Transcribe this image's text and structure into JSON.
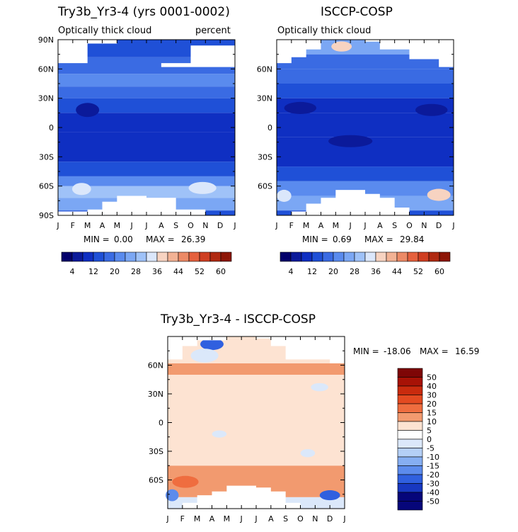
{
  "chart_data": [
    {
      "type": "heatmap",
      "id": "model",
      "title": "Try3b_Yr3-4 (yrs 0001-0002)",
      "subtitle_left": "Optically thick cloud",
      "subtitle_right": "percent",
      "x_ticks": [
        "J",
        "F",
        "M",
        "A",
        "M",
        "J",
        "J",
        "A",
        "S",
        "O",
        "N",
        "D",
        "J"
      ],
      "y_ticks": [
        "90N",
        "60N",
        "30N",
        "0",
        "30S",
        "60S",
        "90S"
      ],
      "y_values": [
        90,
        60,
        30,
        0,
        -30,
        -60,
        -90
      ],
      "min_label": "MIN =",
      "min_value": "0.00",
      "max_label": "MAX =",
      "max_value": "26.39",
      "colorbar_ticks": [
        "4",
        "12",
        "20",
        "28",
        "36",
        "44",
        "52",
        "60"
      ],
      "colorbar_levels": [
        0,
        4,
        8,
        12,
        16,
        20,
        24,
        28,
        32,
        36,
        40,
        44,
        48,
        52,
        56,
        60,
        64
      ],
      "masked_north": [
        [
          0,
          66
        ],
        [
          2,
          66
        ],
        [
          2,
          86
        ],
        [
          4,
          86
        ],
        [
          4,
          90
        ],
        [
          12,
          90
        ],
        [
          12,
          84
        ],
        [
          9,
          84
        ],
        [
          9,
          66
        ],
        [
          7,
          66
        ],
        [
          7,
          62
        ],
        [
          12,
          62
        ]
      ],
      "masked_south": [
        [
          0,
          -86
        ],
        [
          2,
          -86
        ],
        [
          2,
          -84
        ],
        [
          3,
          -84
        ],
        [
          3,
          -76
        ],
        [
          4,
          -76
        ],
        [
          4,
          -70
        ],
        [
          6,
          -70
        ],
        [
          6,
          -72
        ],
        [
          8,
          -72
        ],
        [
          8,
          -84
        ],
        [
          10,
          -84
        ],
        [
          10,
          -90
        ]
      ],
      "bands": [
        {
          "lat": [
            -90,
            -85
          ],
          "level": 3
        },
        {
          "lat": [
            -85,
            -72
          ],
          "level": 6
        },
        {
          "lat": [
            -72,
            -60
          ],
          "level": 7
        },
        {
          "lat": [
            -60,
            -50
          ],
          "level": 5
        },
        {
          "lat": [
            -50,
            -35
          ],
          "level": 3
        },
        {
          "lat": [
            -35,
            -5
          ],
          "level": 2
        },
        {
          "lat": [
            -5,
            15
          ],
          "level": 2
        },
        {
          "lat": [
            15,
            30
          ],
          "level": 3
        },
        {
          "lat": [
            30,
            42
          ],
          "level": 4
        },
        {
          "lat": [
            42,
            55
          ],
          "level": 5
        },
        {
          "lat": [
            55,
            72
          ],
          "level": 4
        },
        {
          "lat": [
            72,
            90
          ],
          "level": 3
        }
      ],
      "blobs": [
        {
          "x": 2.0,
          "lat": 18,
          "w": 1.2,
          "h": 5,
          "level": 1
        },
        {
          "x": 1.6,
          "lat": -63,
          "w": 0.9,
          "h": 4,
          "level": 8
        },
        {
          "x": 9.8,
          "lat": -62,
          "w": 1.5,
          "h": 4,
          "level": 8
        }
      ]
    },
    {
      "type": "heatmap",
      "id": "obs",
      "title": "ISCCP-COSP",
      "subtitle_left": "Optically thick cloud",
      "x_ticks": [
        "J",
        "F",
        "M",
        "A",
        "M",
        "J",
        "J",
        "A",
        "S",
        "O",
        "N",
        "D",
        "J"
      ],
      "y_ticks": [
        "60N",
        "30N",
        "0",
        "30S",
        "60S"
      ],
      "y_values": [
        60,
        30,
        0,
        -30,
        -60
      ],
      "min_label": "MIN =",
      "min_value": "0.69",
      "max_label": "MAX =",
      "max_value": "29.84",
      "colorbar_ticks": [
        "4",
        "12",
        "20",
        "28",
        "36",
        "44",
        "52",
        "60"
      ],
      "colorbar_levels": [
        0,
        4,
        8,
        12,
        16,
        20,
        24,
        28,
        32,
        36,
        40,
        44,
        48,
        52,
        56,
        60,
        64
      ],
      "masked_north": [
        [
          0,
          66
        ],
        [
          1,
          66
        ],
        [
          1,
          72
        ],
        [
          2,
          72
        ],
        [
          2,
          80
        ],
        [
          3,
          80
        ],
        [
          3,
          90
        ],
        [
          12,
          90
        ],
        [
          12,
          62
        ],
        [
          11,
          62
        ],
        [
          11,
          70
        ],
        [
          9,
          70
        ],
        [
          9,
          80
        ],
        [
          7,
          80
        ],
        [
          7,
          88
        ],
        [
          6,
          88
        ]
      ],
      "masked_south": [
        [
          1,
          -90
        ],
        [
          1,
          -86
        ],
        [
          2,
          -86
        ],
        [
          2,
          -78
        ],
        [
          3,
          -78
        ],
        [
          3,
          -72
        ],
        [
          4,
          -72
        ],
        [
          4,
          -64
        ],
        [
          6,
          -64
        ],
        [
          6,
          -68
        ],
        [
          7,
          -68
        ],
        [
          7,
          -72
        ],
        [
          8,
          -72
        ],
        [
          8,
          -82
        ],
        [
          9,
          -82
        ],
        [
          9,
          -90
        ]
      ],
      "bands": [
        {
          "lat": [
            -90,
            -85
          ],
          "level": 3
        },
        {
          "lat": [
            -85,
            -70
          ],
          "level": 6
        },
        {
          "lat": [
            -70,
            -55
          ],
          "level": 5
        },
        {
          "lat": [
            -55,
            -40
          ],
          "level": 3
        },
        {
          "lat": [
            -40,
            -10
          ],
          "level": 2
        },
        {
          "lat": [
            -10,
            15
          ],
          "level": 2
        },
        {
          "lat": [
            15,
            30
          ],
          "level": 2
        },
        {
          "lat": [
            30,
            45
          ],
          "level": 3
        },
        {
          "lat": [
            45,
            60
          ],
          "level": 4
        },
        {
          "lat": [
            60,
            75
          ],
          "level": 4
        },
        {
          "lat": [
            75,
            90
          ],
          "level": 6
        }
      ],
      "blobs": [
        {
          "x": 5.0,
          "lat": -14,
          "w": 2.6,
          "h": 4,
          "level": 1
        },
        {
          "x": 1.6,
          "lat": 20,
          "w": 1.8,
          "h": 4,
          "level": 1
        },
        {
          "x": 10.5,
          "lat": 18,
          "w": 1.8,
          "h": 4,
          "level": 1
        },
        {
          "x": 4.4,
          "lat": 83,
          "w": 1.0,
          "h": 3,
          "level": 9
        },
        {
          "x": 11.0,
          "lat": -69,
          "w": 1.2,
          "h": 4,
          "level": 9
        },
        {
          "x": 0.5,
          "lat": -70,
          "w": 0.6,
          "h": 4,
          "level": 8
        }
      ]
    },
    {
      "type": "heatmap",
      "id": "diff",
      "title": "Try3b_Yr3-4 - ISCCP-COSP",
      "x_ticks": [
        "J",
        "F",
        "M",
        "A",
        "M",
        "J",
        "J",
        "A",
        "S",
        "O",
        "N",
        "D",
        "J"
      ],
      "y_ticks": [
        "60N",
        "30N",
        "0",
        "30S",
        "60S"
      ],
      "y_values": [
        60,
        30,
        0,
        -30,
        -60
      ],
      "min_label": "MIN =",
      "min_value": "-18.06",
      "max_label": "MAX =",
      "max_value": "16.59",
      "colorbar_ticks": [
        "50",
        "40",
        "30",
        "20",
        "15",
        "10",
        "5",
        "0",
        "-5",
        "-10",
        "-15",
        "-20",
        "-30",
        "-40",
        "-50"
      ],
      "masked_north": [
        [
          0,
          66
        ],
        [
          1,
          66
        ],
        [
          1,
          80
        ],
        [
          2,
          80
        ],
        [
          2,
          86
        ],
        [
          4,
          86
        ],
        [
          4,
          90
        ],
        [
          12,
          90
        ],
        [
          12,
          62
        ],
        [
          11,
          62
        ],
        [
          11,
          66
        ],
        [
          8,
          66
        ],
        [
          8,
          80
        ],
        [
          7,
          80
        ],
        [
          7,
          88
        ],
        [
          6,
          88
        ]
      ],
      "masked_south": [
        [
          1,
          -90
        ],
        [
          1,
          -84
        ],
        [
          2,
          -84
        ],
        [
          2,
          -76
        ],
        [
          3,
          -76
        ],
        [
          3,
          -72
        ],
        [
          4,
          -72
        ],
        [
          4,
          -66
        ],
        [
          6,
          -66
        ],
        [
          6,
          -68
        ],
        [
          7,
          -68
        ],
        [
          7,
          -72
        ],
        [
          8,
          -72
        ],
        [
          8,
          -84
        ],
        [
          9,
          -84
        ],
        [
          9,
          -90
        ]
      ],
      "bands": [
        {
          "lat": [
            -90,
            -78
          ],
          "level": "-5"
        },
        {
          "lat": [
            -78,
            -60
          ],
          "level": "10"
        },
        {
          "lat": [
            -60,
            -45
          ],
          "level": "10"
        },
        {
          "lat": [
            -45,
            50
          ],
          "level": "5"
        },
        {
          "lat": [
            50,
            62
          ],
          "level": "10"
        },
        {
          "lat": [
            62,
            90
          ],
          "level": "5"
        }
      ],
      "blobs": [
        {
          "x": 3.0,
          "lat": 82,
          "w": 1.2,
          "h": 4,
          "level": "-30"
        },
        {
          "x": 2.5,
          "lat": 70,
          "w": 1.5,
          "h": 5,
          "level": "-5"
        },
        {
          "x": 1.2,
          "lat": -62,
          "w": 1.4,
          "h": 4,
          "level": "15"
        },
        {
          "x": 0.3,
          "lat": -76,
          "w": 0.5,
          "h": 4,
          "level": "-20"
        },
        {
          "x": 11.0,
          "lat": -76,
          "w": 1.0,
          "h": 3,
          "level": "-30"
        },
        {
          "x": 10.3,
          "lat": 37,
          "w": 0.8,
          "h": 2,
          "level": "-5"
        },
        {
          "x": 3.5,
          "lat": -12,
          "w": 0.6,
          "h": 1.5,
          "level": "-5"
        },
        {
          "x": 9.5,
          "lat": -32,
          "w": 0.6,
          "h": 2,
          "level": "-5"
        }
      ]
    }
  ],
  "colors": {
    "seq": [
      "#03006b",
      "#0b1a9a",
      "#0f2fc2",
      "#1f50d7",
      "#3a6be3",
      "#5a8bee",
      "#7ba7f4",
      "#9fc2f8",
      "#dbe7fb",
      "#f7d3c1",
      "#f2b294",
      "#ec8a66",
      "#e5613e",
      "#cf3f22",
      "#b02a12",
      "#8d1607"
    ],
    "diff": {
      "50": "#7e0606",
      "40": "#a71206",
      "30": "#c92b0e",
      "20": "#e34a21",
      "15": "#ef6d3f",
      "10": "#f29a6f",
      "5": "#fde3d2",
      "0": "#ffffff",
      "-5": "#dbe8fa",
      "-10": "#b4cff6",
      "-15": "#86aef2",
      "-20": "#5c8bec",
      "-30": "#3060df",
      "-40": "#1838c0",
      "-50": "#06067a"
    }
  }
}
